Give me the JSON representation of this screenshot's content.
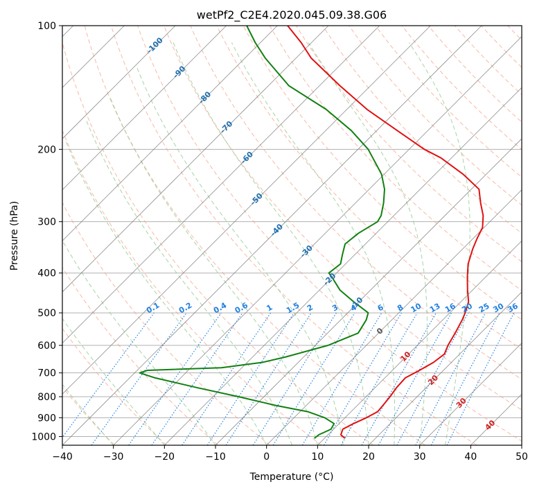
{
  "chart_data": {
    "type": "line",
    "title": "wetPf2_C2E4.2020.045.09.38.G06",
    "xlabel": "Temperature (°C)",
    "ylabel": "Pressure (hPa)",
    "xlim": [
      -40,
      50
    ],
    "ylim": [
      1050,
      100
    ],
    "y_scale": "log",
    "grid": true,
    "x_ticks": [
      -40,
      -30,
      -20,
      -10,
      0,
      10,
      20,
      30,
      40,
      50
    ],
    "y_ticks": [
      1000,
      900,
      800,
      700,
      600,
      500,
      400,
      300,
      200,
      100
    ],
    "skewt": true,
    "isotherm_labels": [
      "-100",
      "-90",
      "-80",
      "-70",
      "-60",
      "-50",
      "-40",
      "-30",
      "-20",
      "-10",
      "0",
      "10",
      "20",
      "30",
      "40"
    ],
    "mixing_ratio_labels": [
      "0.1",
      "0.2",
      "0.4",
      "0.6",
      "1",
      "1.5",
      "2",
      "3",
      "4",
      "6",
      "8",
      "10",
      "13",
      "16",
      "20",
      "25",
      "30",
      "36"
    ],
    "colors": {
      "temperature": "#e01010",
      "dewpoint": "#108010",
      "isotherm": "#7a7a7a",
      "dry_adiabat": "#f4a08a",
      "moist_adiabat": "#90c890",
      "mixing_ratio": "#2080e0",
      "isotherm_label": "#1f6fb0",
      "warm_label": "#d02020"
    },
    "series": [
      {
        "key": "temperature",
        "pressure": [
          1010,
          990,
          960,
          930,
          900,
          870,
          840,
          800,
          760,
          720,
          690,
          660,
          630,
          600,
          560,
          520,
          500,
          470,
          440,
          410,
          380,
          350,
          330,
          310,
          290,
          270,
          250,
          230,
          210,
          200,
          180,
          160,
          140,
          120,
          110,
          100
        ],
        "temperature": [
          14.0,
          12.5,
          11.8,
          12.8,
          14.2,
          15.2,
          15.0,
          14.7,
          14.2,
          14.0,
          15.3,
          16.5,
          17.0,
          16.0,
          15.0,
          13.8,
          13.0,
          11.5,
          9.0,
          6.5,
          4.0,
          2.0,
          0.8,
          -0.3,
          -2.5,
          -5.5,
          -8.5,
          -14.5,
          -22.0,
          -27.0,
          -36.0,
          -46.0,
          -56.0,
          -67.0,
          -72.0,
          -78.0
        ]
      },
      {
        "key": "dewpoint",
        "pressure": [
          1010,
          990,
          960,
          930,
          900,
          870,
          840,
          800,
          760,
          720,
          700,
          690,
          680,
          660,
          640,
          600,
          560,
          520,
          500,
          470,
          440,
          410,
          400,
          380,
          360,
          340,
          320,
          300,
          290,
          270,
          250,
          230,
          200,
          180,
          160,
          140,
          120,
          110,
          100
        ],
        "temperature": [
          8.0,
          8.2,
          9.5,
          9.0,
          6.0,
          1.5,
          -6.0,
          -15.0,
          -25.0,
          -35.0,
          -39.0,
          -38.0,
          -24.0,
          -17.0,
          -13.5,
          -7.5,
          -4.0,
          -5.0,
          -6.0,
          -11.0,
          -16.0,
          -20.0,
          -21.5,
          -21.0,
          -22.5,
          -24.0,
          -23.5,
          -22.0,
          -22.5,
          -24.5,
          -27.0,
          -30.5,
          -38.0,
          -45.0,
          -54.0,
          -66.0,
          -76.0,
          -81.0,
          -86.0
        ]
      }
    ]
  }
}
